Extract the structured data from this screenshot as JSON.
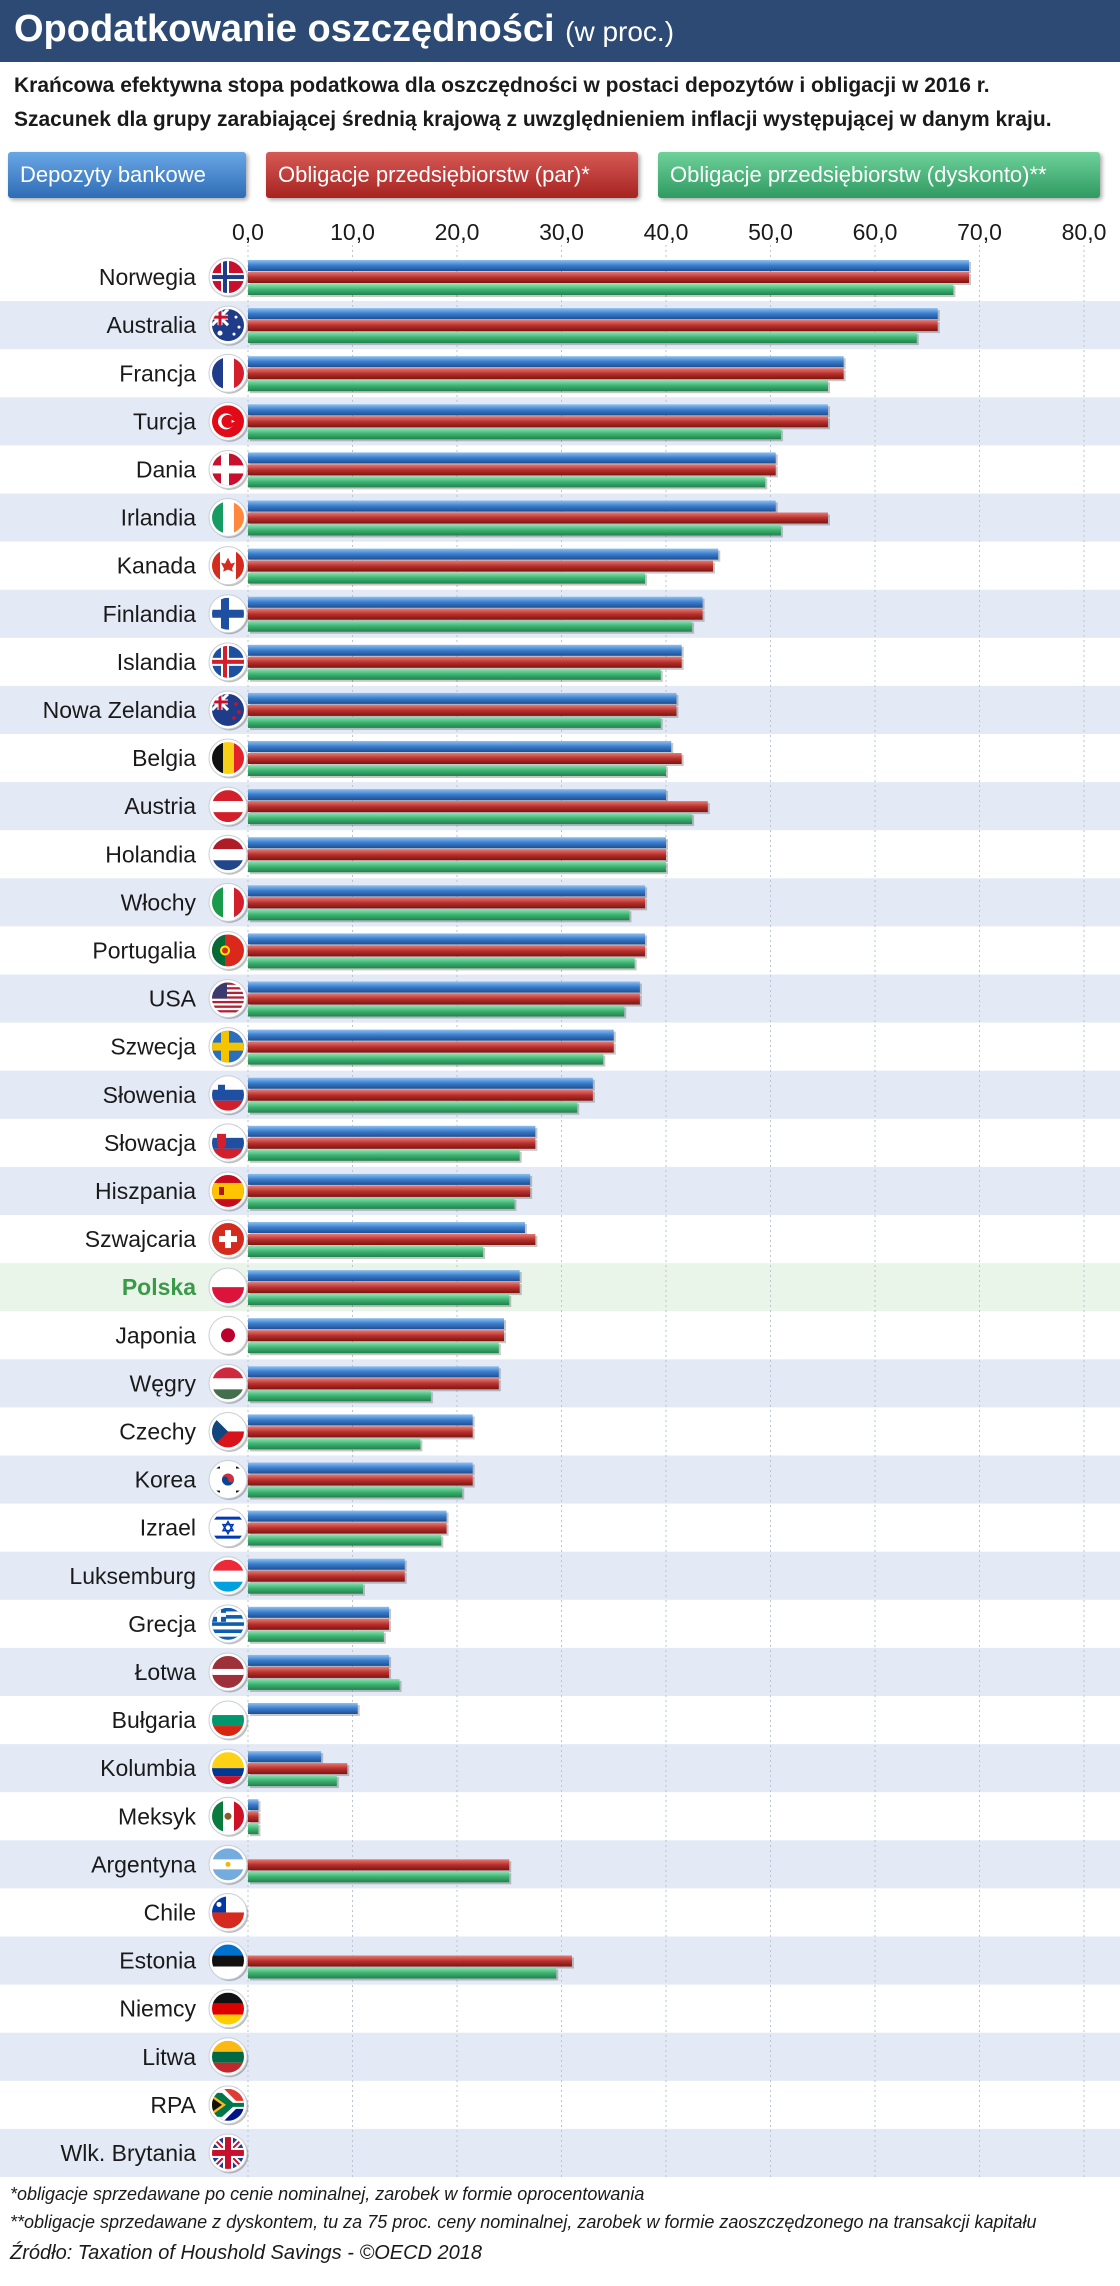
{
  "header": {
    "title": "Opodatkowanie oszczędności",
    "title_suffix": "(w proc.)",
    "subtitle_line1": "Krańcowa efektywna stopa podatkowa dla oszczędności w postaci depozytów i obligacji w 2016 r.",
    "subtitle_line2": "Szacunek dla grupy zarabiającej średnią krajową z uwzględnieniem inflacji występującej w danym kraju."
  },
  "legend": {
    "deposits": "Depozyty bankowe",
    "bonds_par": "Obligacje przedsiębiorstw (par)*",
    "bonds_discount": "Obligacje przedsiębiorstw (dyskonto)**"
  },
  "footnotes": {
    "note1": "*obligacje sprzedawane po cenie nominalnej, zarobek w formie oprocentowania",
    "note2": "**obligacje sprzedawane z dyskontem, tu za 75 proc. ceny nominalnej, zarobek w formie zaoszczędzonego na transakcji kapitału",
    "source": "Źródło: Taxation of Houshold Savings - ©OECD 2018"
  },
  "colors": {
    "deposits": "#3a7ccc",
    "bonds_par": "#b8302c",
    "bonds_discount": "#3cb371",
    "stripe": "#e3eaf5",
    "highlight_row": "#eaf5ea",
    "highlight_text": "#3a9a4a"
  },
  "chart_data": {
    "type": "bar",
    "orientation": "horizontal",
    "title": "Opodatkowanie oszczędności (w proc.)",
    "xlim": [
      0,
      80
    ],
    "x_ticks": [
      "0,0",
      "10,0",
      "20,0",
      "30,0",
      "40,0",
      "50,0",
      "60,0",
      "70,0",
      "80,0"
    ],
    "highlight": "Polska",
    "categories": [
      "Norwegia",
      "Australia",
      "Francja",
      "Turcja",
      "Dania",
      "Irlandia",
      "Kanada",
      "Finlandia",
      "Islandia",
      "Nowa Zelandia",
      "Belgia",
      "Austria",
      "Holandia",
      "Włochy",
      "Portugalia",
      "USA",
      "Szwecja",
      "Słowenia",
      "Słowacja",
      "Hiszpania",
      "Szwajcaria",
      "Polska",
      "Japonia",
      "Węgry",
      "Czechy",
      "Korea",
      "Izrael",
      "Luksemburg",
      "Grecja",
      "Łotwa",
      "Bułgaria",
      "Kolumbia",
      "Meksyk",
      "Argentyna",
      "Chile",
      "Estonia",
      "Niemcy",
      "Litwa",
      "RPA",
      "Wlk. Brytania"
    ],
    "flags": [
      "flag-norway",
      "flag-australia",
      "flag-france",
      "flag-turkey",
      "flag-denmark",
      "flag-ireland",
      "flag-canada",
      "flag-finland",
      "flag-iceland",
      "flag-new-zealand",
      "flag-belgium",
      "flag-austria",
      "flag-netherlands",
      "flag-italy",
      "flag-portugal",
      "flag-usa",
      "flag-sweden",
      "flag-slovenia",
      "flag-slovakia",
      "flag-spain",
      "flag-switzerland",
      "flag-poland",
      "flag-japan",
      "flag-hungary",
      "flag-czechia",
      "flag-korea",
      "flag-israel",
      "flag-luxembourg",
      "flag-greece",
      "flag-latvia",
      "flag-bulgaria",
      "flag-colombia",
      "flag-mexico",
      "flag-argentina",
      "flag-chile",
      "flag-estonia",
      "flag-germany",
      "flag-lithuania",
      "flag-south-africa",
      "flag-uk"
    ],
    "series": [
      {
        "name": "Depozyty bankowe",
        "values": [
          69.0,
          66.0,
          57.0,
          55.5,
          50.5,
          50.5,
          45.0,
          43.5,
          41.5,
          41.0,
          40.5,
          40.0,
          40.0,
          38.0,
          38.0,
          37.5,
          35.0,
          33.0,
          27.5,
          27.0,
          26.5,
          26.0,
          24.5,
          24.0,
          21.5,
          21.5,
          19.0,
          15.0,
          13.5,
          13.5,
          10.5,
          7.0,
          1.0,
          0,
          0,
          0,
          0,
          0,
          0,
          0
        ]
      },
      {
        "name": "Obligacje przedsiębiorstw (par)*",
        "values": [
          69.0,
          66.0,
          57.0,
          55.5,
          50.5,
          55.5,
          44.5,
          43.5,
          41.5,
          41.0,
          41.5,
          44.0,
          40.0,
          38.0,
          38.0,
          37.5,
          35.0,
          33.0,
          27.5,
          27.0,
          27.5,
          26.0,
          24.5,
          24.0,
          21.5,
          21.5,
          19.0,
          15.0,
          13.5,
          13.5,
          0,
          9.5,
          1.0,
          25.0,
          0,
          31.0,
          0,
          0,
          0,
          0
        ]
      },
      {
        "name": "Obligacje przedsiębiorstw (dyskonto)**",
        "values": [
          67.5,
          64.0,
          55.5,
          51.0,
          49.5,
          51.0,
          38.0,
          42.5,
          39.5,
          39.5,
          40.0,
          42.5,
          40.0,
          36.5,
          37.0,
          36.0,
          34.0,
          31.5,
          26.0,
          25.5,
          22.5,
          25.0,
          24.0,
          17.5,
          16.5,
          20.5,
          18.5,
          11.0,
          13.0,
          14.5,
          0,
          8.5,
          1.0,
          25.0,
          0,
          29.5,
          0,
          0,
          0,
          0
        ]
      }
    ]
  }
}
